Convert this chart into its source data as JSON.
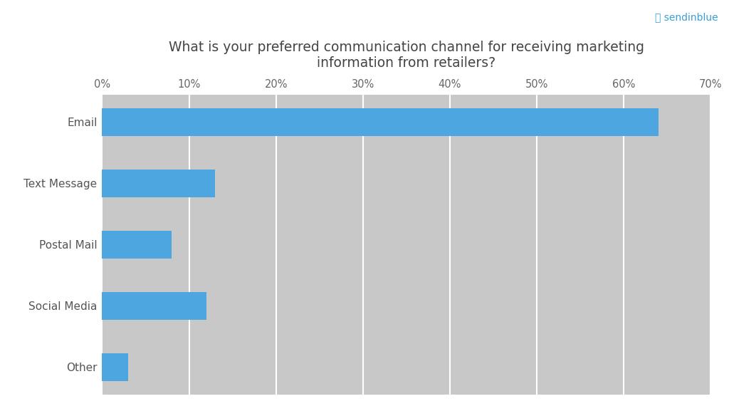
{
  "title": "What is your preferred communication channel for receiving marketing\ninformation from retailers?",
  "categories": [
    "Email",
    "Text Message",
    "Postal Mail",
    "Social Media",
    "Other"
  ],
  "values": [
    64,
    13,
    8,
    12,
    3
  ],
  "bar_color": "#4da6e0",
  "plot_bg_color": "#c8c8c8",
  "fig_bg_color": "#ffffff",
  "xlim": [
    0,
    70
  ],
  "xticks": [
    0,
    10,
    20,
    30,
    40,
    50,
    60,
    70
  ],
  "xtick_labels": [
    "0%",
    "10%",
    "20%",
    "30%",
    "40%",
    "50%",
    "60%",
    "70%"
  ],
  "title_fontsize": 13.5,
  "tick_fontsize": 10.5,
  "label_fontsize": 11,
  "bar_height": 0.45,
  "grid_color": "#ffffff",
  "grid_linewidth": 1.5,
  "sendinblue_text": "Ⓢ sendinblue",
  "sendinblue_color": "#3a9fd5"
}
